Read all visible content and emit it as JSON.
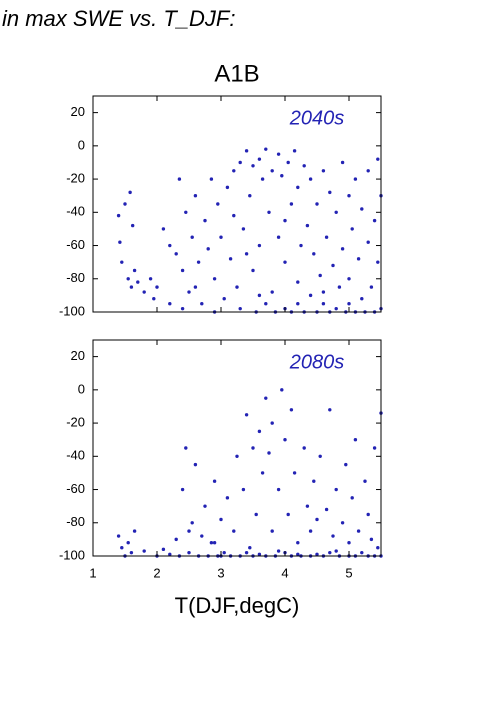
{
  "header": "in max SWE vs. T_DJF:",
  "chart_data": [
    {
      "type": "scatter",
      "title": "A1B",
      "annotation": "2040s",
      "color": "#2323b4",
      "xlim": [
        1,
        5.5
      ],
      "ylim": [
        -100,
        30
      ],
      "yticks": [
        20,
        0,
        -20,
        -40,
        -60,
        -80,
        -100
      ],
      "x": [
        1.4,
        1.42,
        1.45,
        1.5,
        1.55,
        1.58,
        1.6,
        1.62,
        1.65,
        1.7,
        1.8,
        1.9,
        1.95,
        2.0,
        2.1,
        2.2,
        2.3,
        2.35,
        2.4,
        2.45,
        2.5,
        2.55,
        2.6,
        2.65,
        2.7,
        2.75,
        2.8,
        2.85,
        2.9,
        2.95,
        3.0,
        3.05,
        3.1,
        3.15,
        3.2,
        3.25,
        3.3,
        3.3,
        3.35,
        3.4,
        3.45,
        3.5,
        3.5,
        3.55,
        3.6,
        3.6,
        3.65,
        3.7,
        3.7,
        3.75,
        3.8,
        3.8,
        3.85,
        3.9,
        3.9,
        3.95,
        4.0,
        4.0,
        4.05,
        4.1,
        4.1,
        4.15,
        4.2,
        4.2,
        4.25,
        4.3,
        4.3,
        4.35,
        4.4,
        4.4,
        4.45,
        4.5,
        4.5,
        4.55,
        4.6,
        4.6,
        4.65,
        4.7,
        4.7,
        4.75,
        4.8,
        4.8,
        4.85,
        4.9,
        4.9,
        4.95,
        5.0,
        5.0,
        5.05,
        5.1,
        5.1,
        5.15,
        5.2,
        5.2,
        5.25,
        5.3,
        5.3,
        5.35,
        5.4,
        5.4,
        5.45,
        5.45,
        5.5,
        5.5,
        2.4,
        2.9,
        3.4,
        3.6,
        4.0,
        4.2,
        4.6,
        5.0,
        3.2,
        2.6,
        2.2
      ],
      "values": [
        -42,
        -58,
        -70,
        -35,
        -80,
        -28,
        -85,
        -48,
        -75,
        -82,
        -88,
        -80,
        -92,
        -85,
        -50,
        -95,
        -65,
        -20,
        -75,
        -40,
        -88,
        -55,
        -30,
        -70,
        -95,
        -45,
        -62,
        -20,
        -80,
        -35,
        -55,
        -92,
        -25,
        -68,
        -42,
        -85,
        -10,
        -98,
        -50,
        -3,
        -30,
        -75,
        -12,
        -100,
        -8,
        -60,
        -20,
        -95,
        -2,
        -40,
        -15,
        -88,
        -100,
        -5,
        -55,
        -18,
        -98,
        -70,
        -10,
        -35,
        -100,
        -3,
        -82,
        -25,
        -60,
        -100,
        -12,
        -48,
        -90,
        -20,
        -65,
        -100,
        -35,
        -78,
        -15,
        -95,
        -55,
        -100,
        -28,
        -72,
        -40,
        -98,
        -85,
        -10,
        -62,
        -100,
        -30,
        -80,
        -50,
        -100,
        -20,
        -68,
        -92,
        -38,
        -100,
        -58,
        -15,
        -85,
        -100,
        -45,
        -70,
        -8,
        -98,
        -30,
        -98,
        -100,
        -65,
        -90,
        -45,
        -95,
        -88,
        -95,
        -15,
        -85,
        -60
      ]
    },
    {
      "type": "scatter",
      "annotation": "2080s",
      "xlabel": "T(DJF,degC)",
      "color": "#2323b4",
      "xlim": [
        1,
        5.5
      ],
      "ylim": [
        -100,
        30
      ],
      "xticks": [
        1,
        2,
        3,
        4,
        5
      ],
      "yticks": [
        20,
        0,
        -20,
        -40,
        -60,
        -80,
        -100
      ],
      "x": [
        1.4,
        1.45,
        1.5,
        1.55,
        1.6,
        1.65,
        1.8,
        2.0,
        2.1,
        2.2,
        2.3,
        2.35,
        2.4,
        2.45,
        2.5,
        2.55,
        2.6,
        2.65,
        2.7,
        2.75,
        2.8,
        2.85,
        2.9,
        2.95,
        3.0,
        3.05,
        3.1,
        3.15,
        3.2,
        3.25,
        3.3,
        3.35,
        3.4,
        3.45,
        3.5,
        3.5,
        3.55,
        3.6,
        3.6,
        3.65,
        3.7,
        3.7,
        3.75,
        3.8,
        3.8,
        3.85,
        3.9,
        3.95,
        4.0,
        4.0,
        4.05,
        4.1,
        4.1,
        4.15,
        4.2,
        4.25,
        4.3,
        4.35,
        4.4,
        4.4,
        4.45,
        4.5,
        4.5,
        4.55,
        4.6,
        4.65,
        4.7,
        4.7,
        4.75,
        4.8,
        4.85,
        4.9,
        4.95,
        5.0,
        5.0,
        5.05,
        5.1,
        5.1,
        5.15,
        5.2,
        5.25,
        5.3,
        5.3,
        5.35,
        5.4,
        5.4,
        5.45,
        5.5,
        5.5,
        3.0,
        3.4,
        3.9,
        4.2,
        4.8,
        2.5,
        2.9
      ],
      "values": [
        -88,
        -95,
        -100,
        -92,
        -98,
        -85,
        -97,
        -100,
        -96,
        -99,
        -90,
        -100,
        -60,
        -35,
        -98,
        -80,
        -45,
        -100,
        -88,
        -70,
        -100,
        -92,
        -55,
        -100,
        -78,
        -98,
        -65,
        -100,
        -85,
        -40,
        -100,
        -60,
        -15,
        -95,
        -35,
        -100,
        -75,
        -25,
        -99,
        -50,
        -5,
        -100,
        -38,
        -85,
        -20,
        -100,
        -60,
        0,
        -98,
        -30,
        -75,
        -100,
        -12,
        -50,
        -92,
        -100,
        -35,
        -70,
        -100,
        -85,
        -55,
        -99,
        -78,
        -40,
        -100,
        -72,
        -12,
        -98,
        -88,
        -60,
        -100,
        -80,
        -45,
        -100,
        -92,
        -65,
        -30,
        -100,
        -85,
        -98,
        -55,
        -100,
        -75,
        -90,
        -100,
        -35,
        -95,
        -100,
        -14,
        -100,
        -98,
        -97,
        -99,
        -97,
        -85,
        -92
      ]
    }
  ]
}
